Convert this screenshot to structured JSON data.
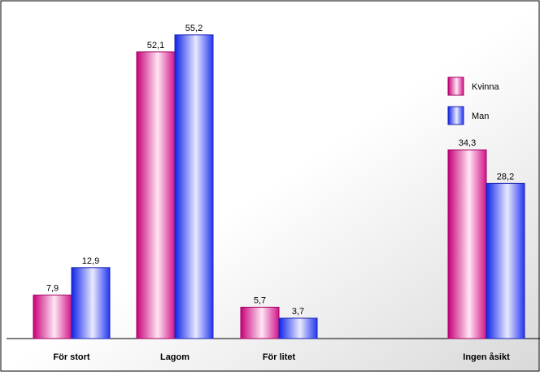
{
  "chart_data": {
    "type": "bar",
    "title": "",
    "xlabel": "",
    "ylabel": "",
    "ylim": [
      0,
      60
    ],
    "grid": false,
    "legend_position": "right",
    "categories": [
      "För stort",
      "Lagom",
      "För litet",
      "",
      "Ingen åsikt"
    ],
    "series": [
      {
        "name": "Kvinna",
        "color": "#e0309a",
        "values": [
          7.9,
          52.1,
          5.7,
          null,
          34.3
        ],
        "labels": [
          "7,9",
          "52,1",
          "5,7",
          "",
          "34,3"
        ]
      },
      {
        "name": "Man",
        "color": "#3a4dff",
        "values": [
          12.9,
          55.2,
          3.7,
          null,
          28.2
        ],
        "labels": [
          "12,9",
          "55,2",
          "3,7",
          "",
          "28,2"
        ]
      }
    ]
  }
}
